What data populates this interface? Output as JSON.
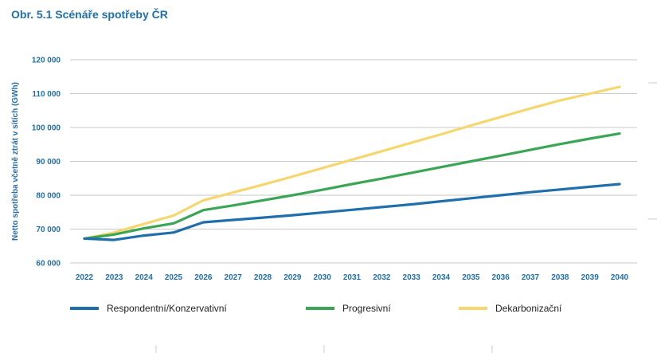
{
  "chart_data": {
    "type": "line",
    "title": "Obr. 5.1 Scénáře spotřeby ČR",
    "ylabel": "Netto spotřeba včetně ztrát v sítích (GWh)",
    "xlabel": "",
    "ylim": [
      60000,
      120000
    ],
    "yticks": [
      60000,
      70000,
      80000,
      90000,
      100000,
      110000,
      120000
    ],
    "ytick_labels": [
      "60 000",
      "70 000",
      "80 000",
      "90 000",
      "100 000",
      "110 000",
      "120 000"
    ],
    "x": [
      "2022",
      "2023",
      "2024",
      "2025",
      "2026",
      "2027",
      "2028",
      "2029",
      "2030",
      "2031",
      "2032",
      "2033",
      "2034",
      "2035",
      "2036",
      "2037",
      "2038",
      "2039",
      "2040"
    ],
    "grid": "horizontal",
    "legend": "bottom",
    "series": [
      {
        "name": "Respondentní/Konzervativní",
        "color": "#1f6fad",
        "values": [
          67200,
          66800,
          68100,
          69000,
          72000,
          72700,
          73400,
          74100,
          74900,
          75700,
          76500,
          77300,
          78200,
          79100,
          80000,
          80900,
          81700,
          82500,
          83300
        ]
      },
      {
        "name": "Progresivní",
        "color": "#3aa655",
        "values": [
          67200,
          68400,
          70200,
          71700,
          75600,
          77000,
          78500,
          80000,
          81600,
          83300,
          84900,
          86600,
          88300,
          90000,
          91700,
          93400,
          95100,
          96700,
          98200
        ]
      },
      {
        "name": "Dekarbonizační",
        "color": "#f5d76e",
        "values": [
          67200,
          69000,
          71500,
          74000,
          78500,
          80800,
          83100,
          85500,
          88000,
          90500,
          93000,
          95500,
          98000,
          100600,
          103100,
          105600,
          108000,
          110000,
          112000
        ]
      }
    ]
  }
}
